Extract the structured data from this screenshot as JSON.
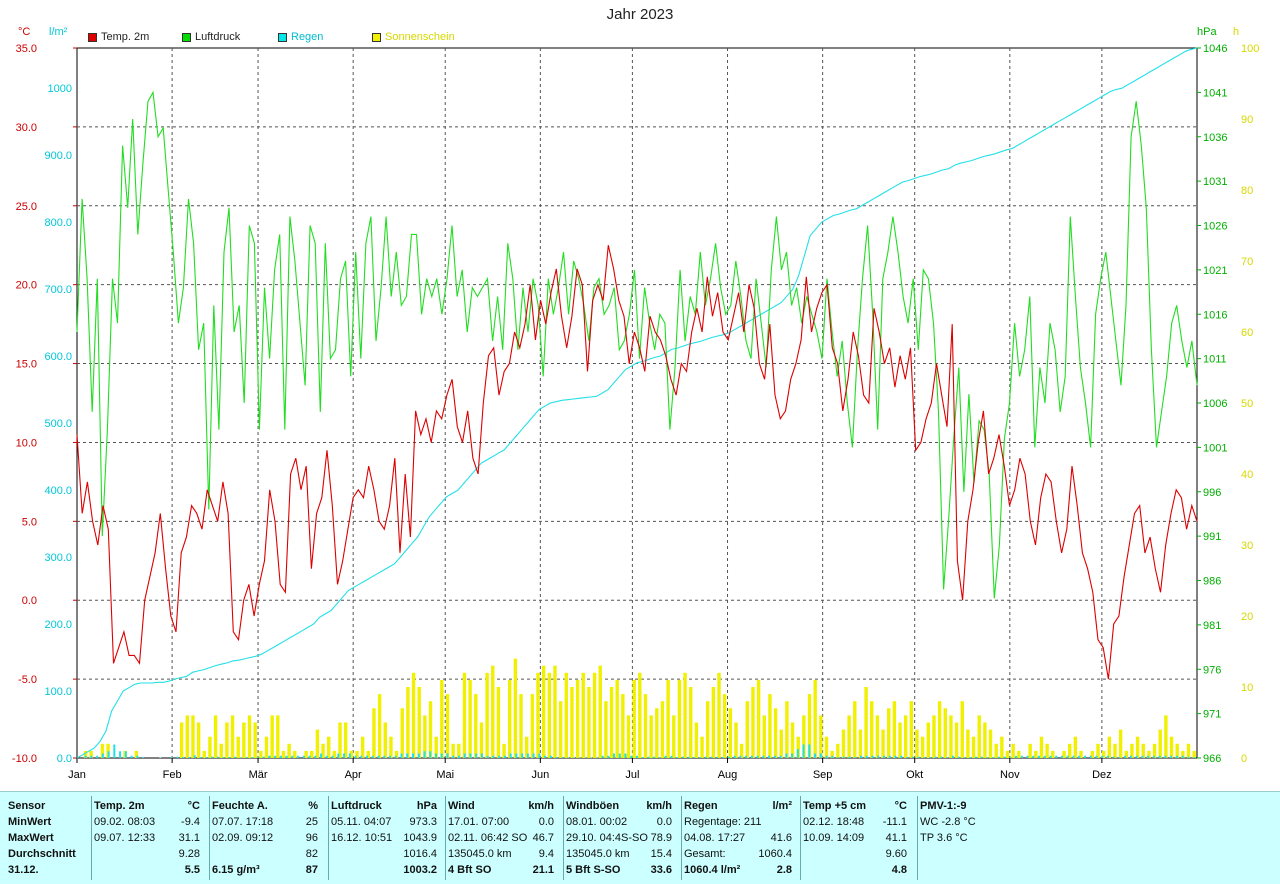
{
  "title": "Jahr 2023",
  "units": {
    "left1": "°C",
    "left2": "l/m²",
    "right1": "hPa",
    "right2": "h"
  },
  "legend": [
    {
      "label": "Temp. 2m",
      "color": "#e00000"
    },
    {
      "label": "Luftdruck",
      "color": "#00dd00"
    },
    {
      "label": "Regen",
      "color": "#00e8e8"
    },
    {
      "label": "Sonnenschein",
      "color": "#f0f000"
    }
  ],
  "colors": {
    "temp": "#dd0000",
    "pressure": "#22dd22",
    "rain": "#22e0e8",
    "sun": "#f0f000",
    "grid": "#555555",
    "axisTemp": "#cc0000",
    "axisRain": "#00c8d8",
    "axisPress": "#00b000",
    "axisSun": "#d8d800"
  },
  "chart_data": {
    "type": "line",
    "x_ticks": [
      "Jan",
      "Feb",
      "Mär",
      "Apr",
      "Mai",
      "Jun",
      "Jul",
      "Aug",
      "Sep",
      "Okt",
      "Nov",
      "Dez"
    ],
    "axes": {
      "temp": {
        "ticks": [
          "35.0",
          "30.0",
          "25.0",
          "20.0",
          "15.0",
          "10.0",
          "5.0",
          "0.0",
          "-5.0",
          "-10.0"
        ],
        "ylim": [
          -10,
          35
        ]
      },
      "rain": {
        "ticks": [
          "1000",
          "900.0",
          "800.0",
          "700.0",
          "600.0",
          "500.0",
          "400.0",
          "300.0",
          "200.0",
          "100.0",
          "0.0"
        ],
        "ylim": [
          0,
          1060
        ]
      },
      "pressure": {
        "ticks": [
          "1046",
          "1041",
          "1036",
          "1031",
          "1026",
          "1021",
          "1016",
          "1011",
          "1006",
          "1001",
          "996",
          "991",
          "986",
          "981",
          "976",
          "971",
          "966"
        ],
        "ylim": [
          966,
          1046
        ]
      },
      "sun": {
        "ticks": [
          "100",
          "90",
          "80",
          "70",
          "60",
          "50",
          "40",
          "30",
          "20",
          "10",
          "0"
        ],
        "ylim": [
          0,
          100
        ]
      }
    },
    "series": [
      {
        "name": "Temp. 2m",
        "axis": "temp",
        "values": [
          10.5,
          5.5,
          7.5,
          5.0,
          3.5,
          6.0,
          4.5,
          -4.0,
          -3.0,
          -2.0,
          -3.5,
          -3.5,
          -4.0,
          0.0,
          1.5,
          3.0,
          5.5,
          2.0,
          -1.0,
          -2.0,
          3.0,
          4.0,
          6.0,
          5.5,
          4.5,
          7.0,
          6.0,
          5.0,
          7.5,
          5.5,
          -2.0,
          -2.5,
          0.0,
          1.0,
          -1.0,
          1.0,
          2.5,
          7.0,
          5.0,
          1.0,
          0.5,
          8.0,
          9.0,
          7.0,
          8.5,
          2.0,
          5.5,
          6.5,
          9.5,
          6.0,
          1.0,
          2.5,
          4.5,
          6.5,
          7.0,
          6.5,
          8.5,
          7.0,
          5.0,
          4.5,
          6.0,
          9.0,
          3.0,
          8.0,
          4.0,
          12.0,
          10.5,
          11.5,
          10.0,
          12.0,
          11.5,
          13.0,
          14.0,
          11.0,
          10.0,
          12.0,
          9.0,
          8.0,
          12.5,
          15.5,
          16.0,
          13.0,
          14.5,
          15.0,
          17.0,
          16.0,
          17.5,
          20.0,
          16.5,
          19.0,
          17.5,
          19.5,
          21.0,
          18.0,
          16.0,
          18.0,
          21.0,
          20.0,
          14.5,
          19.0,
          20.0,
          19.0,
          22.5,
          21.0,
          19.0,
          18.0,
          15.0,
          17.0,
          16.0,
          14.5,
          18.0,
          17.0,
          16.5,
          15.5,
          14.0,
          13.0,
          15.0,
          14.5,
          17.0,
          18.5,
          17.0,
          20.5,
          18.0,
          19.5,
          17.0,
          16.5,
          18.0,
          19.5,
          17.0,
          20.0,
          18.5,
          15.0,
          14.0,
          17.5,
          13.0,
          11.5,
          12.0,
          14.0,
          15.0,
          16.5,
          20.5,
          17.0,
          18.5,
          19.5,
          20.0,
          16.0,
          15.0,
          12.0,
          14.0,
          17.0,
          15.5,
          13.0,
          12.5,
          18.5,
          17.0,
          15.0,
          16.0,
          13.5,
          15.5,
          14.0,
          16.0,
          9.5,
          10.0,
          11.5,
          12.5,
          15.0,
          13.0,
          11.0,
          17.5,
          2.5,
          0.0,
          5.0,
          7.0,
          10.0,
          12.0,
          8.0,
          9.0,
          10.5,
          8.5,
          6.0,
          7.0,
          9.0,
          8.0,
          5.0,
          3.5,
          6.5,
          8.0,
          7.5,
          5.0,
          3.0,
          4.5,
          8.5,
          6.0,
          3.0,
          2.0,
          0.5,
          -2.5,
          -3.0,
          -5.0,
          -1.5,
          -1.0,
          1.5,
          3.5,
          5.5,
          6.0,
          3.0,
          4.0,
          2.0,
          0.5,
          3.5,
          5.5,
          7.0,
          6.5,
          4.5,
          6.0,
          5.0
        ]
      },
      {
        "name": "Luftdruck",
        "axis": "pressure",
        "values": [
          1014,
          1029,
          1020,
          1005,
          1020,
          991,
          1003,
          1020,
          1015,
          1035,
          1028,
          1038,
          1025,
          1033,
          1040,
          1041,
          1036,
          1037,
          1030,
          1023,
          1015,
          1019,
          1029,
          1024,
          1012,
          1015,
          994,
          1017,
          1003,
          1023,
          1028,
          1014,
          1017,
          1006,
          1026,
          1024,
          1003,
          1019,
          1011,
          1021,
          1025,
          1003,
          1027,
          1022,
          1015,
          1008,
          1026,
          1024,
          1005,
          1024,
          1011,
          1012,
          1020,
          1022,
          1009,
          1023,
          1011,
          1024,
          1027,
          1013,
          1019,
          1027,
          1018,
          1023,
          1017,
          1018,
          1025,
          1025,
          1016,
          1020,
          1018,
          1020,
          1016,
          1020,
          1026,
          1018,
          1021,
          1014,
          1019,
          1018,
          1019,
          1020,
          1013,
          1018,
          1012,
          1024,
          1020,
          1012,
          1019,
          1014,
          1020,
          1017,
          1009,
          1020,
          1016,
          1019,
          1023,
          1016,
          1022,
          1020,
          1017,
          1013,
          1019,
          1020,
          1016,
          1017,
          1019,
          1012,
          1013,
          1016,
          1021,
          1011,
          1019,
          1015,
          1012,
          1016,
          1015,
          1003,
          1010,
          1021,
          1013,
          1018,
          1016,
          1023,
          1017,
          1020,
          1024,
          1019,
          1016,
          1017,
          1022,
          1018,
          1013,
          1011,
          1020,
          1015,
          1010,
          1021,
          1027,
          1021,
          1023,
          1017,
          1019,
          1015,
          1018,
          1016,
          1014,
          1011,
          1020,
          1014,
          1009,
          1013,
          1006,
          1001,
          1012,
          1020,
          1026,
          1016,
          1003,
          1020,
          1023,
          1027,
          1023,
          1018,
          1015,
          1020,
          1012,
          1021,
          1020,
          1015,
          1005,
          985,
          993,
          1002,
          1010,
          996,
          1007,
          997,
          1004,
          1003,
          998,
          984,
          990,
          1002,
          1006,
          1015,
          1009,
          1012,
          1018,
          1001,
          1010,
          1006,
          1015,
          1012,
          1005,
          1009,
          1027,
          1018,
          1010,
          1006,
          1001,
          1016,
          1020,
          1023,
          1018,
          1013,
          1008,
          1017,
          1036,
          1040,
          1035,
          1028,
          1012,
          1001,
          1005,
          1009,
          1015,
          1017,
          1013,
          1010,
          1013,
          1008
        ]
      },
      {
        "name": "Regen",
        "axis": "rain",
        "values": [
          0,
          5,
          10,
          15,
          25,
          40,
          70,
          85,
          100,
          105,
          110,
          112,
          112,
          112,
          113,
          113,
          115,
          118,
          120,
          122,
          128,
          130,
          132,
          135,
          138,
          140,
          142,
          145,
          146,
          148,
          150,
          152,
          155,
          160,
          165,
          170,
          175,
          180,
          185,
          190,
          195,
          200,
          210,
          215,
          220,
          230,
          240,
          250,
          255,
          260,
          265,
          270,
          275,
          280,
          285,
          290,
          300,
          310,
          320,
          330,
          345,
          360,
          370,
          380,
          390,
          395,
          400,
          410,
          420,
          430,
          440,
          445,
          450,
          455,
          460,
          470,
          480,
          490,
          500,
          510,
          520,
          525,
          530,
          532,
          534,
          535,
          536,
          537,
          538,
          539,
          540,
          545,
          550,
          560,
          570,
          580,
          585,
          590,
          592,
          595,
          598,
          600,
          605,
          610,
          612,
          615,
          618,
          620,
          622,
          625,
          628,
          630,
          632,
          635,
          640,
          645,
          650,
          655,
          660,
          665,
          670,
          675,
          680,
          690,
          700,
          720,
          750,
          780,
          790,
          800,
          805,
          810,
          812,
          815,
          818,
          820,
          825,
          830,
          835,
          840,
          845,
          850,
          855,
          860,
          862,
          865,
          868,
          870,
          872,
          875,
          878,
          880,
          885,
          888,
          890,
          892,
          895,
          898,
          900,
          902,
          905,
          908,
          910,
          915,
          920,
          925,
          930,
          935,
          940,
          945,
          950,
          955,
          960,
          965,
          970,
          975,
          980,
          985,
          990,
          995,
          998,
          1000,
          1005,
          1010,
          1015,
          1020,
          1025,
          1030,
          1035,
          1040,
          1045,
          1050,
          1055,
          1058,
          1060
        ]
      },
      {
        "name": "Sonnenschein",
        "axis": "sun",
        "values": [
          0,
          1,
          1,
          0,
          2,
          2,
          0,
          0,
          1,
          0,
          1,
          0,
          0,
          0,
          0,
          0,
          0,
          0,
          5,
          6,
          6,
          5,
          1,
          3,
          6,
          2,
          5,
          6,
          3,
          5,
          6,
          5,
          1,
          3,
          6,
          6,
          1,
          2,
          1,
          0,
          1,
          1,
          4,
          2,
          3,
          1,
          5,
          5,
          1,
          1,
          3,
          1,
          7,
          9,
          5,
          3,
          1,
          7,
          10,
          12,
          10,
          6,
          8,
          3,
          11,
          9,
          2,
          2,
          12,
          11,
          9,
          5,
          12,
          13,
          10,
          2,
          11,
          14,
          9,
          3,
          9,
          12,
          13,
          12,
          13,
          8,
          12,
          10,
          11,
          12,
          10,
          12,
          13,
          8,
          10,
          11,
          9,
          6,
          11,
          12,
          9,
          6,
          7,
          8,
          11,
          6,
          11,
          12,
          10,
          5,
          3,
          8,
          10,
          12,
          9,
          7,
          5,
          2,
          8,
          10,
          11,
          6,
          9,
          7,
          4,
          8,
          5,
          3,
          6,
          9,
          11,
          6,
          3,
          1,
          2,
          4,
          6,
          8,
          4,
          10,
          8,
          6,
          4,
          7,
          8,
          5,
          6,
          8,
          4,
          3,
          5,
          6,
          8,
          7,
          6,
          5,
          8,
          4,
          3,
          6,
          5,
          4,
          2,
          3,
          1,
          2,
          1,
          0,
          2,
          1,
          3,
          2,
          1,
          0,
          1,
          2,
          3,
          1,
          0,
          1,
          2,
          1,
          3,
          2,
          4,
          1,
          2,
          3,
          2,
          1,
          2,
          4,
          6,
          3,
          2,
          1,
          2,
          1
        ]
      }
    ]
  },
  "table": {
    "cols": [
      {
        "title": "Sensor",
        "unit": "",
        "rows": [
          {
            "a": "MinWert",
            "b": ""
          },
          {
            "a": "MaxWert",
            "b": ""
          },
          {
            "a": "Durchschnitt",
            "b": ""
          },
          {
            "a": "31.12.",
            "b": ""
          }
        ]
      },
      {
        "title": "Temp. 2m",
        "unit": "°C",
        "rows": [
          {
            "a": "09.02.  08:03",
            "b": "-9.4"
          },
          {
            "a": "09.07.  12:33",
            "b": "31.1"
          },
          {
            "a": "",
            "b": "9.28"
          },
          {
            "a": "",
            "b": "5.5"
          }
        ]
      },
      {
        "title": "Feuchte A.",
        "unit": "%",
        "rows": [
          {
            "a": "07.07.  17:18",
            "b": "25"
          },
          {
            "a": "02.09.  09:12",
            "b": "96"
          },
          {
            "a": "",
            "b": "82"
          },
          {
            "a": "6.15 g/m³",
            "b": "87"
          }
        ]
      },
      {
        "title": "Luftdruck",
        "unit": "hPa",
        "rows": [
          {
            "a": "05.11.  04:07",
            "b": "973.3"
          },
          {
            "a": "16.12.  10:51",
            "b": "1043.9"
          },
          {
            "a": "",
            "b": "1016.4"
          },
          {
            "a": "",
            "b": "1003.2"
          }
        ]
      },
      {
        "title": "Wind",
        "unit": "km/h",
        "rows": [
          {
            "a": "17.01.  07:00",
            "b": "0.0"
          },
          {
            "a": "02.11.  06:42 SO",
            "b": "46.7"
          },
          {
            "a": "135045.0 km",
            "b": "9.4"
          },
          {
            "a": "4 Bft SO",
            "b": "21.1"
          }
        ]
      },
      {
        "title": "Windböen",
        "unit": "km/h",
        "rows": [
          {
            "a": "08.01.  00:02",
            "b": "0.0"
          },
          {
            "a": "29.10.  04:4S-SO",
            "b": "78.9"
          },
          {
            "a": "135045.0 km",
            "b": "15.4"
          },
          {
            "a": "5 Bft S-SO",
            "b": "33.6"
          }
        ]
      },
      {
        "title": "Regen",
        "unit": "l/m²",
        "rows": [
          {
            "a": "Regentage: 211",
            "b": ""
          },
          {
            "a": "04.08.  17:27",
            "b": "41.6"
          },
          {
            "a": "Gesamt:",
            "b": "1060.4"
          },
          {
            "a": "1060.4 l/m²",
            "b": "2.8"
          }
        ]
      },
      {
        "title": "Temp +5 cm",
        "unit": "°C",
        "rows": [
          {
            "a": "02.12.  18:48",
            "b": "-11.1"
          },
          {
            "a": "10.09.  14:09",
            "b": "41.1"
          },
          {
            "a": "",
            "b": "9.60"
          },
          {
            "a": "",
            "b": "4.8"
          }
        ]
      },
      {
        "title": "PMV-1:-9",
        "unit": "",
        "rows": [
          {
            "a": "WC -2.8 °C",
            "b": ""
          },
          {
            "a": "TP 3.6 °C",
            "b": ""
          },
          {
            "a": "",
            "b": ""
          },
          {
            "a": "",
            "b": ""
          }
        ]
      }
    ]
  }
}
